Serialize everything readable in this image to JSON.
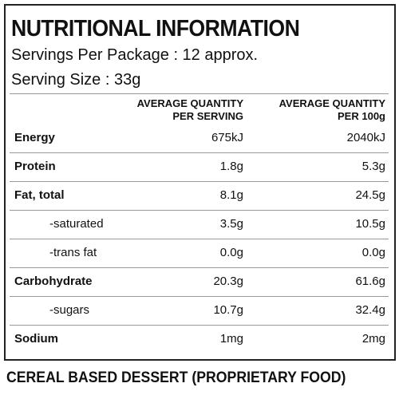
{
  "header": {
    "title": "NUTRITIONAL INFORMATION",
    "servings_per_package": "Servings Per Package : 12 approx.",
    "serving_size": "Serving Size : 33g"
  },
  "table": {
    "columns": [
      [
        "AVERAGE QUANTITY",
        "PER SERVING"
      ],
      [
        "AVERAGE QUANTITY",
        "PER 100g"
      ]
    ],
    "rows": [
      [
        "Energy",
        "675kJ",
        "2040kJ"
      ],
      [
        "Protein",
        "1.8g",
        "5.3g"
      ],
      [
        "Fat, total",
        "8.1g",
        "24.5g"
      ],
      [
        "-saturated",
        "3.5g",
        "10.5g"
      ],
      [
        "-trans fat",
        "0.0g",
        "0.0g"
      ],
      [
        "Carbohydrate",
        "20.3g",
        "61.6g"
      ],
      [
        "-sugars",
        "10.7g",
        "32.4g"
      ],
      [
        "Sodium",
        "1mg",
        "2mg"
      ]
    ]
  },
  "footer": "CEREAL BASED DESSERT (PROPRIETARY FOOD)"
}
